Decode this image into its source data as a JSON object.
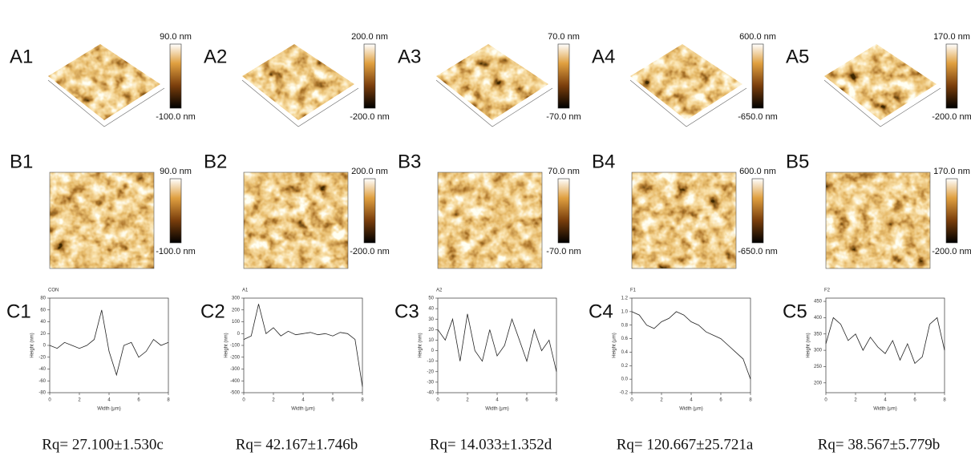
{
  "panels_a": [
    {
      "label": "A1",
      "scale_max": "90.0 nm",
      "scale_min": "-100.0 nm"
    },
    {
      "label": "A2",
      "scale_max": "200.0 nm",
      "scale_min": "-200.0 nm"
    },
    {
      "label": "A3",
      "scale_max": "70.0 nm",
      "scale_min": "-70.0 nm"
    },
    {
      "label": "A4",
      "scale_max": "600.0 nm",
      "scale_min": "-650.0 nm"
    },
    {
      "label": "A5",
      "scale_max": "170.0 nm",
      "scale_min": "-200.0 nm"
    }
  ],
  "panels_b": [
    {
      "label": "B1",
      "scale_max": "90.0 nm",
      "scale_min": "-100.0 nm"
    },
    {
      "label": "B2",
      "scale_max": "200.0 nm",
      "scale_min": "-200.0 nm"
    },
    {
      "label": "B3",
      "scale_max": "70.0 nm",
      "scale_min": "-70.0 nm"
    },
    {
      "label": "B4",
      "scale_max": "600.0 nm",
      "scale_min": "-650.0 nm"
    },
    {
      "label": "B5",
      "scale_max": "170.0 nm",
      "scale_min": "-200.0 nm"
    }
  ],
  "panels_c": [
    {
      "label": "C1",
      "sample": "CON",
      "x_label": "Width (μm)",
      "y_label": "Height (nm)",
      "xlim": [
        0,
        8
      ],
      "xticks": [
        0,
        2,
        4,
        6,
        8
      ],
      "ylim": [
        -80,
        80
      ],
      "yticks": [
        -80,
        -60,
        -40,
        -20,
        0,
        20,
        40,
        60,
        80
      ],
      "x": [
        0,
        0.5,
        1,
        1.5,
        2,
        2.5,
        3,
        3.5,
        4,
        4.5,
        5,
        5.5,
        6,
        6.5,
        7,
        7.5,
        8
      ],
      "values": [
        0,
        -5,
        5,
        0,
        -5,
        0,
        10,
        60,
        -10,
        -50,
        0,
        5,
        -20,
        -10,
        10,
        0,
        5
      ]
    },
    {
      "label": "C2",
      "sample": "A1",
      "x_label": "Width (μm)",
      "y_label": "Height (nm)",
      "xlim": [
        0,
        8
      ],
      "xticks": [
        0,
        2,
        4,
        6,
        8
      ],
      "ylim": [
        -500,
        300
      ],
      "yticks": [
        -500,
        -400,
        -300,
        -200,
        -100,
        0,
        100,
        200,
        300
      ],
      "x": [
        0,
        0.5,
        1,
        1.5,
        2,
        2.5,
        3,
        3.5,
        4,
        4.5,
        5,
        5.5,
        6,
        6.5,
        7,
        7.5,
        8
      ],
      "values": [
        -50,
        -20,
        250,
        0,
        50,
        -20,
        20,
        -10,
        0,
        10,
        -10,
        0,
        -20,
        10,
        0,
        -50,
        -450
      ]
    },
    {
      "label": "C3",
      "sample": "A2",
      "x_label": "Width (μm)",
      "y_label": "Height (nm)",
      "xlim": [
        0,
        8
      ],
      "xticks": [
        0,
        2,
        4,
        6,
        8
      ],
      "ylim": [
        -40,
        50
      ],
      "yticks": [
        -40,
        -30,
        -20,
        -10,
        0,
        10,
        20,
        30,
        40,
        50
      ],
      "x": [
        0,
        0.5,
        1,
        1.5,
        2,
        2.5,
        3,
        3.5,
        4,
        4.5,
        5,
        5.5,
        6,
        6.5,
        7,
        7.5,
        8
      ],
      "values": [
        20,
        10,
        30,
        -10,
        35,
        0,
        -10,
        20,
        -5,
        5,
        30,
        10,
        -10,
        20,
        0,
        10,
        -20
      ]
    },
    {
      "label": "C4",
      "sample": "F1",
      "x_label": "Width (μm)",
      "y_label": "Height (μm)",
      "xlim": [
        0,
        8
      ],
      "xticks": [
        0,
        2,
        4,
        6,
        8
      ],
      "ylim": [
        -0.2,
        1.2
      ],
      "yticks": [
        {
          "value": -0.2,
          "label": "-0.2"
        },
        {
          "value": 0,
          "label": "0.0"
        },
        {
          "value": 0.2,
          "label": "0.2"
        },
        {
          "value": 0.4,
          "label": "0.4"
        },
        {
          "value": 0.6,
          "label": "0.6"
        },
        {
          "value": 0.8,
          "label": "0.8"
        },
        {
          "value": 1,
          "label": "1.0"
        },
        {
          "value": 1.2,
          "label": "1.2"
        }
      ],
      "x": [
        0,
        0.5,
        1,
        1.5,
        2,
        2.5,
        3,
        3.5,
        4,
        4.5,
        5,
        5.5,
        6,
        6.5,
        7,
        7.5,
        8
      ],
      "values": [
        1.0,
        0.95,
        0.8,
        0.75,
        0.85,
        0.9,
        1.0,
        0.95,
        0.85,
        0.8,
        0.7,
        0.65,
        0.6,
        0.5,
        0.4,
        0.3,
        0.0
      ]
    },
    {
      "label": "C5",
      "sample": "F2",
      "x_label": "Width (μm)",
      "y_label": "Height (nm)",
      "xlim": [
        0,
        8
      ],
      "xticks": [
        0,
        2,
        4,
        6,
        8
      ],
      "ylim": [
        170,
        460
      ],
      "yticks": [
        200,
        250,
        300,
        350,
        400,
        450
      ],
      "x": [
        0,
        0.5,
        1,
        1.5,
        2,
        2.5,
        3,
        3.5,
        4,
        4.5,
        5,
        5.5,
        6,
        6.5,
        7,
        7.5,
        8
      ],
      "values": [
        320,
        400,
        380,
        330,
        350,
        300,
        340,
        310,
        290,
        330,
        270,
        320,
        260,
        280,
        380,
        400,
        300
      ]
    }
  ],
  "rq": [
    "Rq= 27.100±1.530c",
    "Rq= 42.167±1.746b",
    "Rq= 14.033±1.352d",
    "Rq= 120.667±25.721a",
    "Rq= 38.567±5.779b"
  ]
}
